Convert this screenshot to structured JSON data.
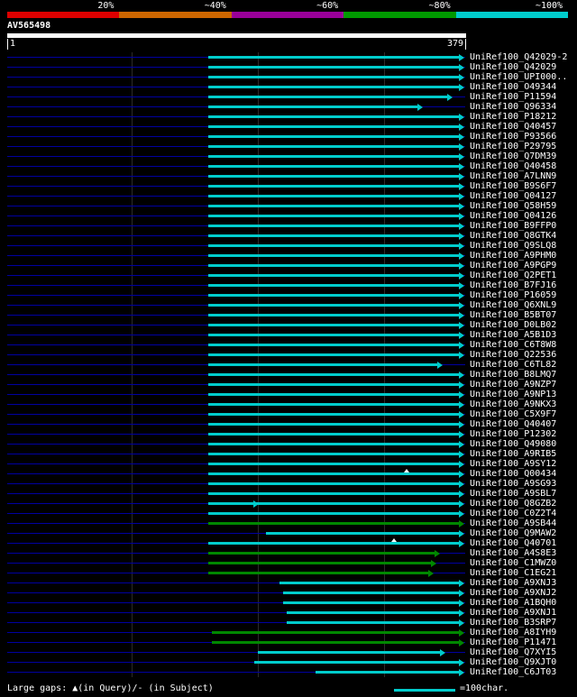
{
  "header": {
    "scale_labels": [
      "20%",
      "~40%",
      "~60%",
      "~80%",
      "~100%"
    ],
    "scale_colors": [
      "#dd0000",
      "#cc6600",
      "#990099",
      "#009900",
      "#00cccc"
    ]
  },
  "query": {
    "name": "AV565498",
    "start_label": "1",
    "end_label": "379"
  },
  "colors": {
    "cyan": "#00cccc",
    "green": "#008800",
    "navy": "#0000a0",
    "grid": "#2b2b2b",
    "query_bar": "#ffffff",
    "background": "#000000"
  },
  "legend": {
    "gaps_text": "Large gaps: ▲(in Query)/- (in Subject)",
    "scale_text": "=100char.",
    "scale_color": "#00cccc"
  },
  "chart_data": {
    "type": "bar",
    "orientation": "horizontal",
    "title": "AV565498",
    "query_length": 379,
    "xlim": [
      1,
      379
    ],
    "grid": "on",
    "hits": [
      {
        "label": "UniRef100_Q42029-2",
        "start": 167,
        "end": 379,
        "color": "cyan"
      },
      {
        "label": "UniRef100_Q42029",
        "start": 167,
        "end": 379,
        "color": "cyan"
      },
      {
        "label": "UniRef100_UPI000..",
        "start": 167,
        "end": 379,
        "color": "cyan"
      },
      {
        "label": "UniRef100_O49344",
        "start": 167,
        "end": 379,
        "color": "cyan"
      },
      {
        "label": "UniRef100_P11594",
        "start": 167,
        "end": 369,
        "color": "cyan"
      },
      {
        "label": "UniRef100_Q96334",
        "start": 167,
        "end": 345,
        "color": "cyan"
      },
      {
        "label": "UniRef100_P18212",
        "start": 167,
        "end": 379,
        "color": "cyan"
      },
      {
        "label": "UniRef100_Q40457",
        "start": 167,
        "end": 379,
        "color": "cyan"
      },
      {
        "label": "UniRef100_P93566",
        "start": 167,
        "end": 379,
        "color": "cyan"
      },
      {
        "label": "UniRef100_P29795",
        "start": 167,
        "end": 379,
        "color": "cyan"
      },
      {
        "label": "UniRef100_Q7DM39",
        "start": 167,
        "end": 379,
        "color": "cyan"
      },
      {
        "label": "UniRef100_Q40458",
        "start": 167,
        "end": 379,
        "color": "cyan"
      },
      {
        "label": "UniRef100_A7LNN9",
        "start": 167,
        "end": 379,
        "color": "cyan"
      },
      {
        "label": "UniRef100_B9S6F7",
        "start": 167,
        "end": 379,
        "color": "cyan"
      },
      {
        "label": "UniRef100_Q04127",
        "start": 167,
        "end": 379,
        "color": "cyan"
      },
      {
        "label": "UniRef100_Q58H59",
        "start": 167,
        "end": 379,
        "color": "cyan"
      },
      {
        "label": "UniRef100_Q04126",
        "start": 167,
        "end": 379,
        "color": "cyan"
      },
      {
        "label": "UniRef100_B9FFP0",
        "start": 167,
        "end": 379,
        "color": "cyan"
      },
      {
        "label": "UniRef100_Q8GTK4",
        "start": 167,
        "end": 379,
        "color": "cyan"
      },
      {
        "label": "UniRef100_Q9SLQ8",
        "start": 167,
        "end": 379,
        "color": "cyan"
      },
      {
        "label": "UniRef100_A9PHM0",
        "start": 167,
        "end": 379,
        "color": "cyan"
      },
      {
        "label": "UniRef100_A9PGP9",
        "start": 167,
        "end": 379,
        "color": "cyan"
      },
      {
        "label": "UniRef100_Q2PET1",
        "start": 167,
        "end": 379,
        "color": "cyan"
      },
      {
        "label": "UniRef100_B7FJ16",
        "start": 167,
        "end": 379,
        "color": "cyan"
      },
      {
        "label": "UniRef100_P16059",
        "start": 167,
        "end": 379,
        "color": "cyan"
      },
      {
        "label": "UniRef100_Q6XNL9",
        "start": 167,
        "end": 379,
        "color": "cyan"
      },
      {
        "label": "UniRef100_B5BT07",
        "start": 167,
        "end": 379,
        "color": "cyan"
      },
      {
        "label": "UniRef100_D0LB02",
        "start": 167,
        "end": 379,
        "color": "cyan"
      },
      {
        "label": "UniRef100_A5B1D3",
        "start": 167,
        "end": 379,
        "color": "cyan"
      },
      {
        "label": "UniRef100_C6T8W8",
        "start": 167,
        "end": 379,
        "color": "cyan"
      },
      {
        "label": "UniRef100_Q22536",
        "start": 167,
        "end": 379,
        "color": "cyan"
      },
      {
        "label": "UniRef100_C6TL82",
        "start": 167,
        "end": 361,
        "color": "cyan"
      },
      {
        "label": "UniRef100_B8LMQ7",
        "start": 167,
        "end": 379,
        "color": "cyan"
      },
      {
        "label": "UniRef100_A9NZP7",
        "start": 167,
        "end": 379,
        "color": "cyan"
      },
      {
        "label": "UniRef100_A9NP13",
        "start": 167,
        "end": 379,
        "color": "cyan"
      },
      {
        "label": "UniRef100_A9NKX3",
        "start": 167,
        "end": 379,
        "color": "cyan"
      },
      {
        "label": "UniRef100_C5X9F7",
        "start": 167,
        "end": 379,
        "color": "cyan"
      },
      {
        "label": "UniRef100_Q40407",
        "start": 167,
        "end": 379,
        "color": "cyan"
      },
      {
        "label": "UniRef100_P12302",
        "start": 167,
        "end": 379,
        "color": "cyan"
      },
      {
        "label": "UniRef100_Q49080",
        "start": 167,
        "end": 379,
        "color": "cyan"
      },
      {
        "label": "UniRef100_A9RIB5",
        "start": 167,
        "end": 379,
        "color": "cyan"
      },
      {
        "label": "UniRef100_A9SY12",
        "start": 167,
        "end": 379,
        "color": "cyan"
      },
      {
        "label": "UniRef100_Q00434",
        "start": 167,
        "end": 379,
        "color": "cyan",
        "markers": [
          {
            "pos": 331,
            "type": "caret"
          }
        ]
      },
      {
        "label": "UniRef100_A9SG93",
        "start": 167,
        "end": 379,
        "color": "cyan"
      },
      {
        "label": "UniRef100_A9SBL7",
        "start": 167,
        "end": 379,
        "color": "cyan"
      },
      {
        "label": "UniRef100_Q8GZB2",
        "start": 167,
        "end": 379,
        "color": "cyan",
        "markers": [
          {
            "pos": 209,
            "type": "arrow"
          }
        ]
      },
      {
        "label": "UniRef100_C0Z2T4",
        "start": 167,
        "end": 379,
        "color": "cyan"
      },
      {
        "label": "UniRef100_A9SB44",
        "start": 167,
        "end": 379,
        "color": "green"
      },
      {
        "label": "UniRef100_Q9MAW2",
        "start": 215,
        "end": 379,
        "color": "cyan"
      },
      {
        "label": "UniRef100_Q40701",
        "start": 167,
        "end": 379,
        "color": "cyan",
        "markers": [
          {
            "pos": 321,
            "type": "caret"
          }
        ]
      },
      {
        "label": "UniRef100_A4S8E3",
        "start": 167,
        "end": 359,
        "color": "green"
      },
      {
        "label": "UniRef100_C1MWZ0",
        "start": 167,
        "end": 356,
        "color": "green"
      },
      {
        "label": "UniRef100_C1EG21",
        "start": 167,
        "end": 354,
        "color": "green"
      },
      {
        "label": "UniRef100_A9XNJ3",
        "start": 226,
        "end": 379,
        "color": "cyan"
      },
      {
        "label": "UniRef100_A9XNJ2",
        "start": 229,
        "end": 379,
        "color": "cyan"
      },
      {
        "label": "UniRef100_A1BQH0",
        "start": 229,
        "end": 379,
        "color": "cyan"
      },
      {
        "label": "UniRef100_A9XNJ1",
        "start": 232,
        "end": 379,
        "color": "cyan"
      },
      {
        "label": "UniRef100_B3SRP7",
        "start": 232,
        "end": 379,
        "color": "cyan"
      },
      {
        "label": "UniRef100_A8IYH9",
        "start": 170,
        "end": 379,
        "color": "green"
      },
      {
        "label": "UniRef100_P11471",
        "start": 170,
        "end": 379,
        "color": "green"
      },
      {
        "label": "UniRef100_Q7XYI5",
        "start": 208,
        "end": 363,
        "color": "cyan"
      },
      {
        "label": "UniRef100_Q9XJT0",
        "start": 205,
        "end": 379,
        "color": "cyan"
      },
      {
        "label": "UniRef100_C6JT03",
        "start": 256,
        "end": 379,
        "color": "cyan"
      }
    ]
  }
}
